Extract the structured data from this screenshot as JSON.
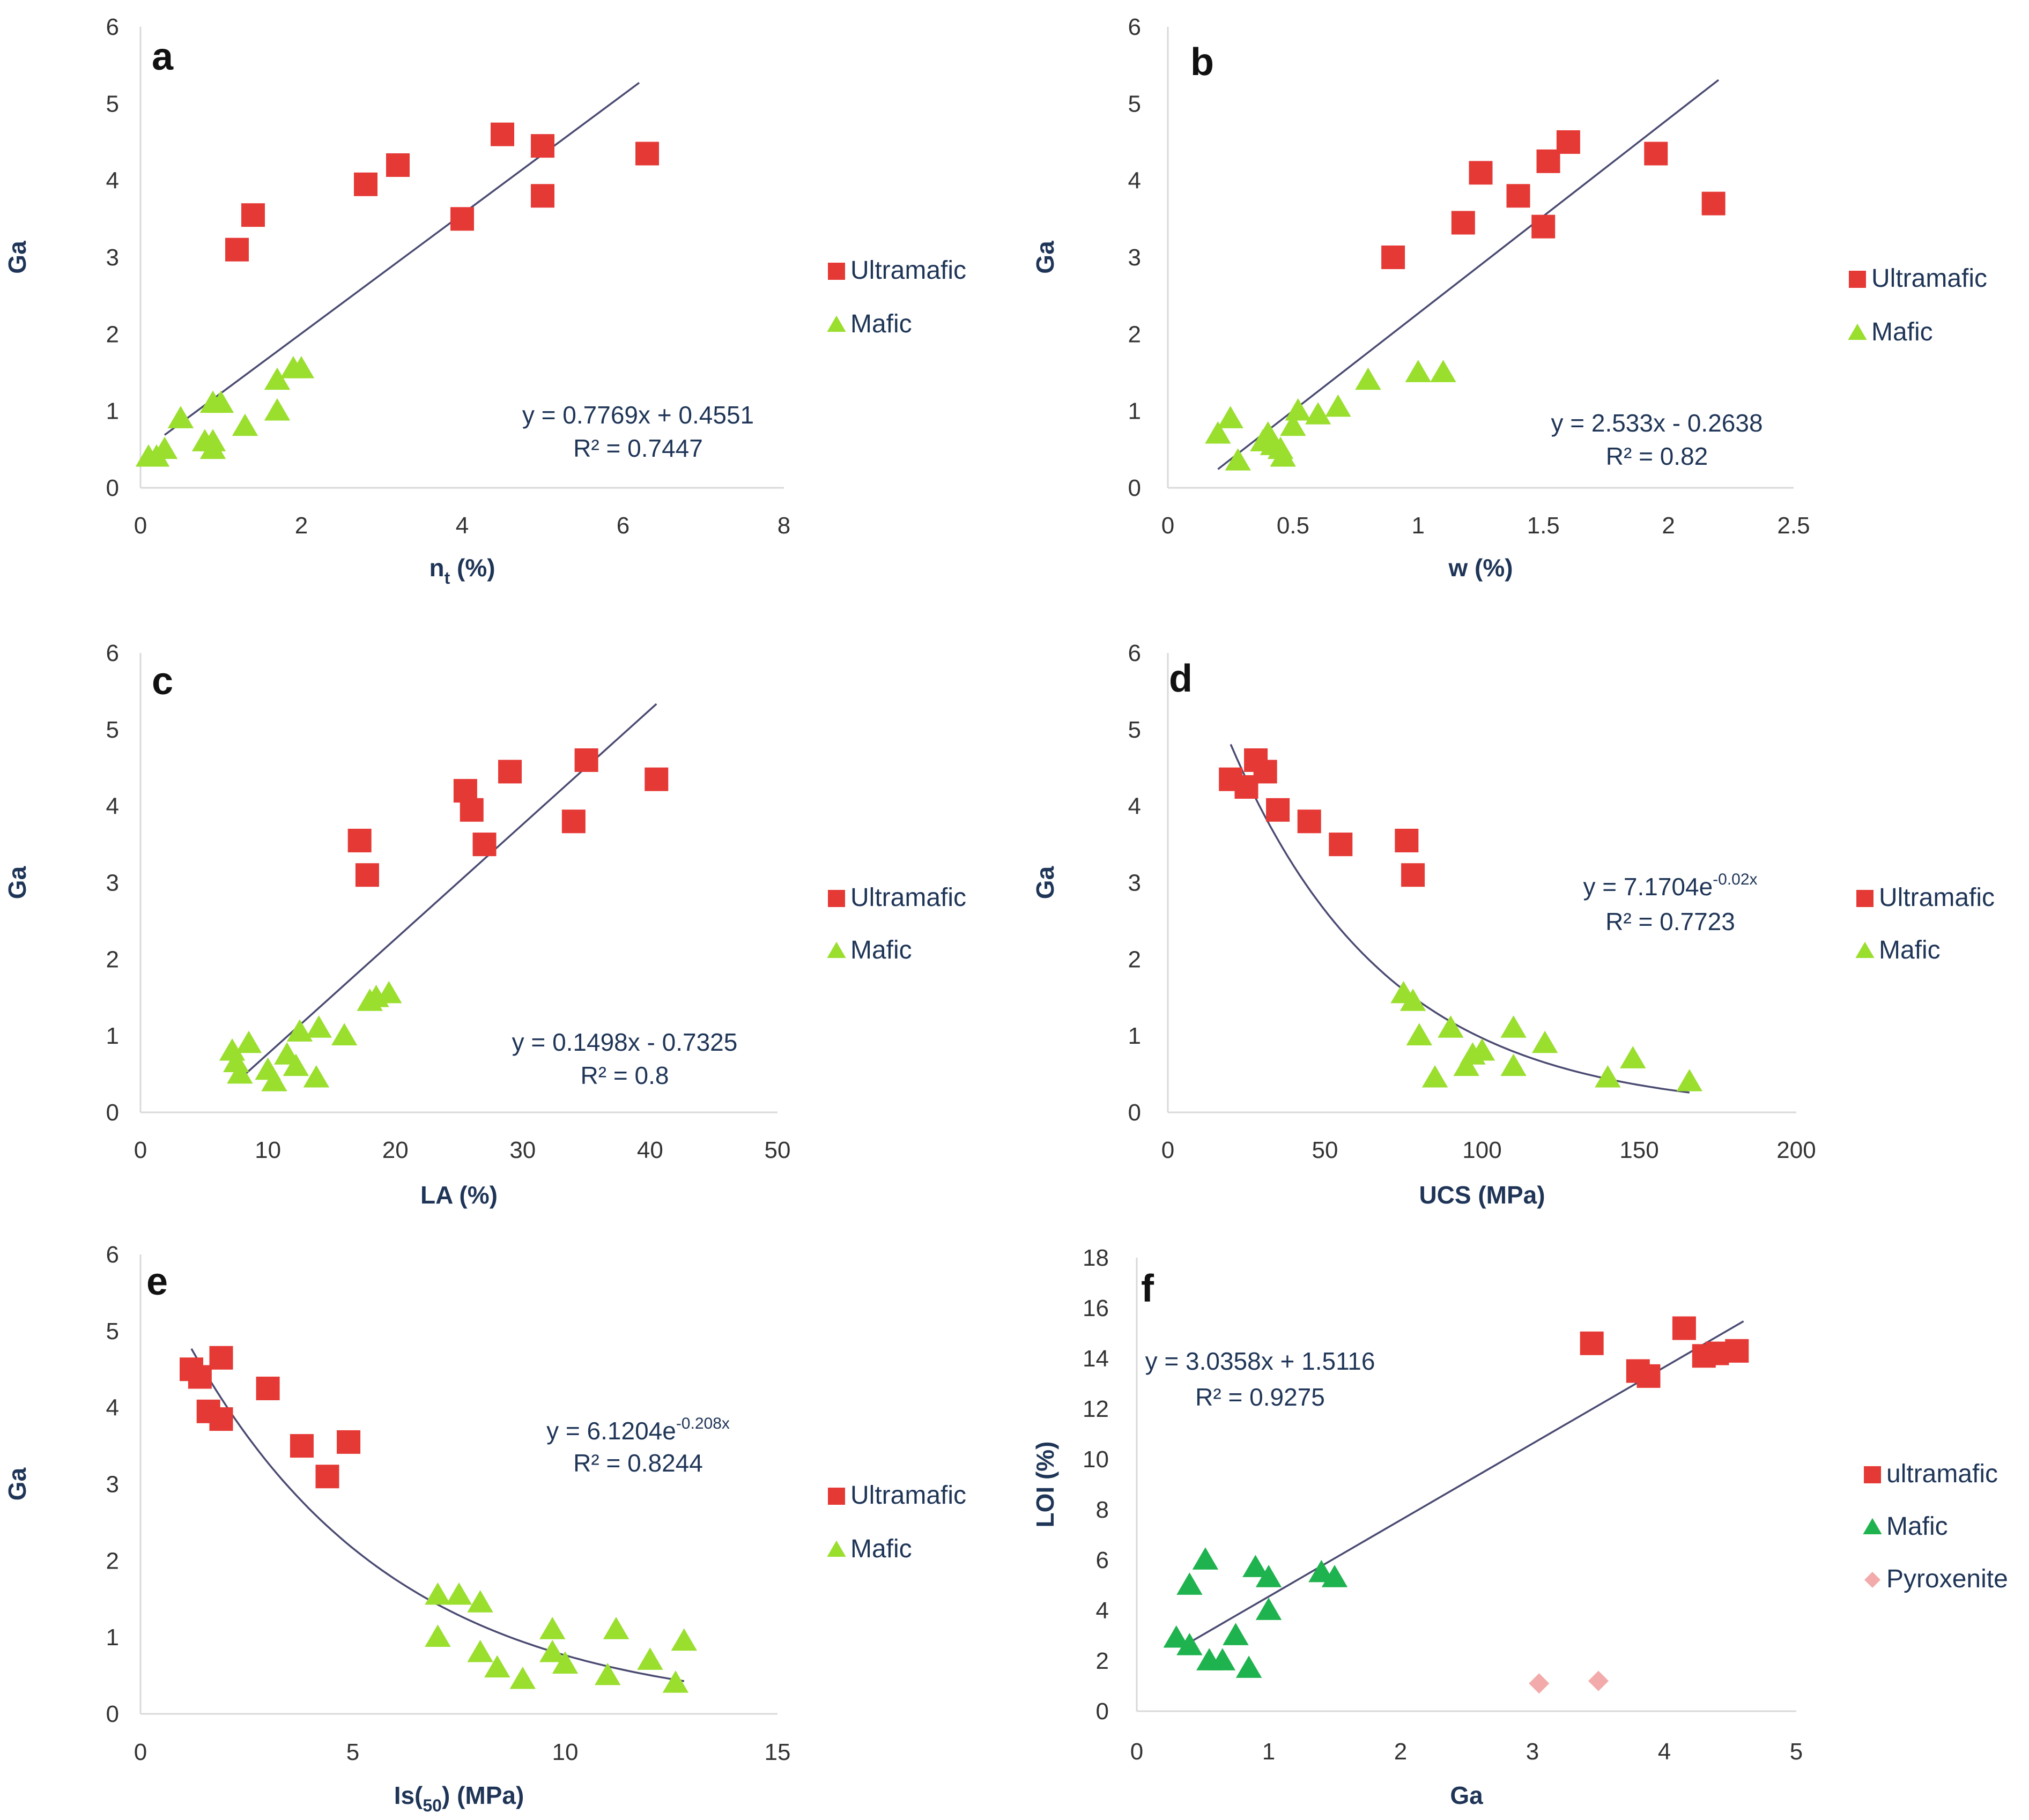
{
  "chart_data": [
    {
      "panel": "a",
      "type": "scatter",
      "xlabel": "n",
      "xlabel_sub": "t",
      "xlabel_tail": " (%)",
      "ylabel": "Ga",
      "xlim": [
        0,
        8
      ],
      "ylim": [
        0,
        6
      ],
      "xticks": [
        0,
        2,
        4,
        6,
        8
      ],
      "yticks": [
        0,
        1,
        2,
        3,
        4,
        5,
        6
      ],
      "series": [
        {
          "name": "Ultramafic",
          "marker": "square",
          "color": "#e53935",
          "points": [
            [
              1.2,
              3.1
            ],
            [
              1.4,
              3.55
            ],
            [
              2.8,
              3.95
            ],
            [
              3.2,
              4.2
            ],
            [
              4.0,
              3.5
            ],
            [
              4.5,
              4.6
            ],
            [
              5.0,
              3.8
            ],
            [
              5.0,
              4.45
            ],
            [
              6.3,
              4.35
            ]
          ]
        },
        {
          "name": "Mafic",
          "marker": "triangle",
          "color": "#9ade2e",
          "points": [
            [
              0.1,
              0.4
            ],
            [
              0.2,
              0.4
            ],
            [
              0.3,
              0.5
            ],
            [
              0.5,
              0.9
            ],
            [
              0.8,
              0.6
            ],
            [
              0.9,
              0.5
            ],
            [
              0.9,
              0.6
            ],
            [
              0.9,
              1.1
            ],
            [
              1.0,
              1.1
            ],
            [
              1.3,
              0.8
            ],
            [
              1.7,
              1.0
            ],
            [
              1.7,
              1.4
            ],
            [
              1.9,
              1.55
            ],
            [
              2.0,
              1.55
            ]
          ]
        }
      ],
      "trend": {
        "kind": "linear",
        "a": 0.7769,
        "b": 0.4551,
        "x": [
          0.3,
          6.2
        ]
      },
      "eq1": "y = 0.7769x + 0.4551",
      "eq2": "R² = 0.7447"
    },
    {
      "panel": "b",
      "type": "scatter",
      "xlabel": "w (%)",
      "ylabel": "Ga",
      "xlim": [
        0,
        2.5
      ],
      "ylim": [
        0,
        6
      ],
      "xticks": [
        0,
        0.5,
        1,
        1.5,
        2,
        2.5
      ],
      "xtick_labels": [
        "0",
        "0.5",
        "1",
        "1.5",
        "2",
        "2.5"
      ],
      "yticks": [
        0,
        1,
        2,
        3,
        4,
        5,
        6
      ],
      "series": [
        {
          "name": "Ultramafic",
          "marker": "square",
          "color": "#e53935",
          "points": [
            [
              0.9,
              3.0
            ],
            [
              1.18,
              3.45
            ],
            [
              1.25,
              4.1
            ],
            [
              1.4,
              3.8
            ],
            [
              1.5,
              3.4
            ],
            [
              1.52,
              4.25
            ],
            [
              1.6,
              4.5
            ],
            [
              1.95,
              4.35
            ],
            [
              2.18,
              3.7
            ]
          ]
        },
        {
          "name": "Mafic",
          "marker": "triangle",
          "color": "#9ade2e",
          "points": [
            [
              0.2,
              0.7
            ],
            [
              0.25,
              0.9
            ],
            [
              0.28,
              0.35
            ],
            [
              0.38,
              0.6
            ],
            [
              0.4,
              0.7
            ],
            [
              0.42,
              0.55
            ],
            [
              0.45,
              0.5
            ],
            [
              0.46,
              0.4
            ],
            [
              0.5,
              0.8
            ],
            [
              0.52,
              1.0
            ],
            [
              0.6,
              0.95
            ],
            [
              0.68,
              1.05
            ],
            [
              0.8,
              1.4
            ],
            [
              1.0,
              1.5
            ],
            [
              1.1,
              1.5
            ]
          ]
        }
      ],
      "trend": {
        "kind": "linear",
        "a": 2.533,
        "b": -0.2638,
        "x": [
          0.2,
          2.2
        ]
      },
      "eq1": "y = 2.533x - 0.2638",
      "eq2": "R² = 0.82"
    },
    {
      "panel": "c",
      "type": "scatter",
      "xlabel": "LA (%)",
      "ylabel": "Ga",
      "xlim": [
        0,
        50
      ],
      "ylim": [
        0,
        6
      ],
      "xticks": [
        0,
        10,
        20,
        30,
        40,
        50
      ],
      "yticks": [
        0,
        1,
        2,
        3,
        4,
        5,
        6
      ],
      "series": [
        {
          "name": "Ultramafic",
          "marker": "square",
          "color": "#e53935",
          "points": [
            [
              17.2,
              3.55
            ],
            [
              17.8,
              3.1
            ],
            [
              25.5,
              4.2
            ],
            [
              26.0,
              3.95
            ],
            [
              27.0,
              3.5
            ],
            [
              29.0,
              4.45
            ],
            [
              34.0,
              3.8
            ],
            [
              35.0,
              4.6
            ],
            [
              40.5,
              4.35
            ]
          ]
        },
        {
          "name": "Mafic",
          "marker": "triangle",
          "color": "#9ade2e",
          "points": [
            [
              7.2,
              0.8
            ],
            [
              7.5,
              0.65
            ],
            [
              7.8,
              0.5
            ],
            [
              8.5,
              0.9
            ],
            [
              10.0,
              0.55
            ],
            [
              10.5,
              0.4
            ],
            [
              11.5,
              0.75
            ],
            [
              12.2,
              0.6
            ],
            [
              12.5,
              1.05
            ],
            [
              13.8,
              0.45
            ],
            [
              14.0,
              1.1
            ],
            [
              16.0,
              1.0
            ],
            [
              18.0,
              1.45
            ],
            [
              18.5,
              1.5
            ],
            [
              19.5,
              1.55
            ]
          ]
        }
      ],
      "trend": {
        "kind": "linear",
        "a": 0.1498,
        "b": -0.7325,
        "x": [
          7.5,
          40.5
        ]
      },
      "eq1": "y = 0.1498x - 0.7325",
      "eq2": "R² = 0.8"
    },
    {
      "panel": "d",
      "type": "scatter",
      "xlabel": "UCS (MPa)",
      "ylabel": "Ga",
      "xlim": [
        0,
        200
      ],
      "ylim": [
        0,
        6
      ],
      "xticks": [
        0,
        50,
        100,
        150,
        200
      ],
      "yticks": [
        0,
        1,
        2,
        3,
        4,
        5,
        6
      ],
      "series": [
        {
          "name": "Ultramafic",
          "marker": "square",
          "color": "#e53935",
          "points": [
            [
              20,
              4.35
            ],
            [
              25,
              4.25
            ],
            [
              28,
              4.6
            ],
            [
              31,
              4.45
            ],
            [
              35,
              3.95
            ],
            [
              45,
              3.8
            ],
            [
              55,
              3.5
            ],
            [
              76,
              3.55
            ],
            [
              78,
              3.1
            ]
          ]
        },
        {
          "name": "Mafic",
          "marker": "triangle",
          "color": "#9ade2e",
          "points": [
            [
              75,
              1.55
            ],
            [
              78,
              1.45
            ],
            [
              80,
              1.0
            ],
            [
              85,
              0.45
            ],
            [
              90,
              1.1
            ],
            [
              95,
              0.6
            ],
            [
              97,
              0.75
            ],
            [
              100,
              0.8
            ],
            [
              110,
              1.1
            ],
            [
              110,
              0.6
            ],
            [
              120,
              0.9
            ],
            [
              140,
              0.45
            ],
            [
              148,
              0.7
            ],
            [
              166,
              0.4
            ]
          ]
        }
      ],
      "trend": {
        "kind": "exp",
        "a": 7.1704,
        "k": -0.02,
        "x": [
          20,
          166
        ]
      },
      "eq1": "y = 7.1704e",
      "eq1_sup": "-0.02x",
      "eq2": "R² = 0.7723"
    },
    {
      "panel": "e",
      "type": "scatter",
      "xlabel": "Is(",
      "xlabel_sub": "50",
      "xlabel_tail": ") (MPa)",
      "ylabel": "Ga",
      "xlim": [
        0,
        15
      ],
      "ylim": [
        0,
        6
      ],
      "xticks": [
        0,
        5,
        10,
        15
      ],
      "yticks": [
        0,
        1,
        2,
        3,
        4,
        5,
        6
      ],
      "series": [
        {
          "name": "Ultramafic",
          "marker": "square",
          "color": "#e53935",
          "points": [
            [
              1.2,
              4.5
            ],
            [
              1.4,
              4.4
            ],
            [
              1.6,
              3.95
            ],
            [
              1.9,
              3.85
            ],
            [
              1.9,
              4.65
            ],
            [
              3.0,
              4.25
            ],
            [
              3.8,
              3.5
            ],
            [
              4.4,
              3.1
            ],
            [
              4.9,
              3.55
            ]
          ]
        },
        {
          "name": "Mafic",
          "marker": "triangle",
          "color": "#9ade2e",
          "points": [
            [
              7.0,
              1.55
            ],
            [
              7.0,
              1.0
            ],
            [
              7.5,
              1.55
            ],
            [
              8.0,
              1.45
            ],
            [
              8.0,
              0.8
            ],
            [
              8.4,
              0.6
            ],
            [
              9.0,
              0.45
            ],
            [
              9.7,
              1.1
            ],
            [
              9.7,
              0.8
            ],
            [
              10.0,
              0.65
            ],
            [
              11.0,
              0.5
            ],
            [
              11.2,
              1.1
            ],
            [
              12.0,
              0.7
            ],
            [
              12.6,
              0.4
            ],
            [
              12.8,
              0.95
            ]
          ]
        }
      ],
      "trend": {
        "kind": "exp",
        "a": 6.1204,
        "k": -0.208,
        "x": [
          1.2,
          12.8
        ]
      },
      "eq1": "y = 6.1204e",
      "eq1_sup": "-0.208x",
      "eq2": "R² = 0.8244"
    },
    {
      "panel": "f",
      "type": "scatter",
      "xlabel": "Ga",
      "ylabel": "LOI (%)",
      "xlim": [
        0,
        5
      ],
      "ylim": [
        0,
        18
      ],
      "xticks": [
        0,
        1,
        2,
        3,
        4,
        5
      ],
      "yticks": [
        0,
        2,
        4,
        6,
        8,
        10,
        12,
        14,
        16,
        18
      ],
      "series": [
        {
          "name": "ultramafic",
          "marker": "square",
          "color": "#e53935",
          "points": [
            [
              3.45,
              14.6
            ],
            [
              3.8,
              13.5
            ],
            [
              3.88,
              13.3
            ],
            [
              4.15,
              15.2
            ],
            [
              4.3,
              14.1
            ],
            [
              4.4,
              14.2
            ],
            [
              4.55,
              14.3
            ]
          ]
        },
        {
          "name": "Mafic",
          "marker": "triangle",
          "color": "#1fb34f",
          "points": [
            [
              0.3,
              2.9
            ],
            [
              0.4,
              2.6
            ],
            [
              0.4,
              5.0
            ],
            [
              0.52,
              6.0
            ],
            [
              0.55,
              2.0
            ],
            [
              0.65,
              2.0
            ],
            [
              0.75,
              3.0
            ],
            [
              0.85,
              1.7
            ],
            [
              0.9,
              5.7
            ],
            [
              1.0,
              4.0
            ],
            [
              1.0,
              5.3
            ],
            [
              1.4,
              5.5
            ],
            [
              1.5,
              5.3
            ]
          ]
        },
        {
          "name": "Pyroxenite",
          "marker": "diamond",
          "color": "#f2aaaa",
          "points": [
            [
              3.05,
              1.1
            ],
            [
              3.5,
              1.2
            ]
          ]
        }
      ],
      "trend": {
        "kind": "linear",
        "a": 3.0358,
        "b": 1.5116,
        "x": [
          0.35,
          4.6
        ]
      },
      "eq1": "y = 3.0358x + 1.5116",
      "eq2": "R² = 0.9275"
    }
  ]
}
